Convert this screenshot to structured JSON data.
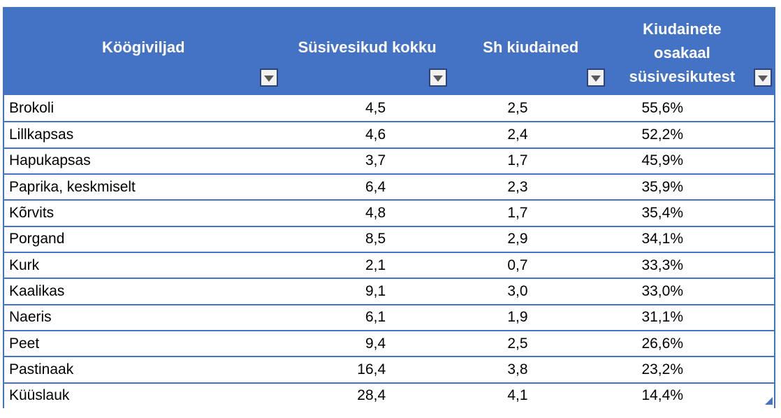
{
  "colors": {
    "header_bg": "#4472C4",
    "border_blue": "#4472C4",
    "header_text": "#ffffff",
    "filter_button_bg": "#f2f2f2",
    "filter_button_border": "#2e4476",
    "filter_arrow": "#595959",
    "body_text": "#000000"
  },
  "table": {
    "columns": [
      {
        "label": "Köögiviljad"
      },
      {
        "label": "Süsivesikud kokku"
      },
      {
        "label": "Sh kiudained"
      },
      {
        "label": "Kiudainete osakaal süsivesikutest",
        "lines": [
          "Kiudainete",
          "osakaal",
          "süsivesikutest"
        ]
      }
    ],
    "rows": [
      [
        "Brokoli",
        "4,5",
        "2,5",
        "55,6%"
      ],
      [
        "Lillkapsas",
        "4,6",
        "2,4",
        "52,2%"
      ],
      [
        "Hapukapsas",
        "3,7",
        "1,7",
        "45,9%"
      ],
      [
        "Paprika, keskmiselt",
        "6,4",
        "2,3",
        "35,9%"
      ],
      [
        "Kõrvits",
        "4,8",
        "1,7",
        "35,4%"
      ],
      [
        "Porgand",
        "8,5",
        "2,9",
        "34,1%"
      ],
      [
        "Kurk",
        "2,1",
        "0,7",
        "33,3%"
      ],
      [
        "Kaalikas",
        "9,1",
        "3,0",
        "33,0%"
      ],
      [
        "Naeris",
        "6,1",
        "1,9",
        "31,1%"
      ],
      [
        "Peet",
        "9,4",
        "2,5",
        "26,6%"
      ],
      [
        "Pastinaak",
        "16,4",
        "3,8",
        "23,2%"
      ],
      [
        "Küüslauk",
        "28,4",
        "4,1",
        "14,4%"
      ]
    ]
  }
}
